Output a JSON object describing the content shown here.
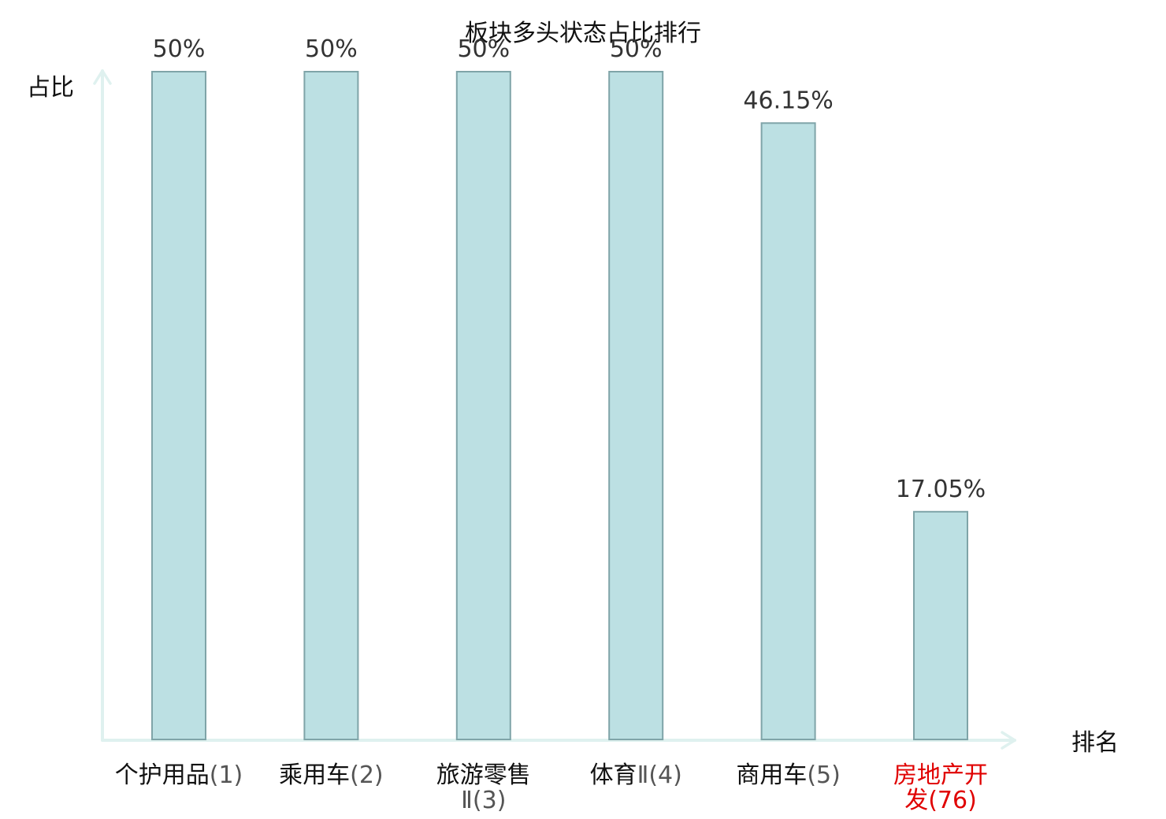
{
  "chart_data": {
    "type": "bar",
    "title": "板块多头状态占比排行",
    "xlabel": "排名",
    "ylabel": "占比",
    "ylim": [
      0,
      50
    ],
    "grid": false,
    "legend": "none",
    "categories": [
      "个护用品(1)",
      "乘用车(2)",
      "旅游零售Ⅱ(3)",
      "体育Ⅱ(4)",
      "商用车(5)",
      "房地产开发(76)"
    ],
    "category_parts": [
      {
        "lines": [
          {
            "name": "个护用品",
            "idx": "(1)"
          }
        ]
      },
      {
        "lines": [
          {
            "name": "乘用车",
            "idx": "(2)"
          }
        ]
      },
      {
        "lines": [
          {
            "name": "旅游零售",
            "idx": ""
          },
          {
            "name": "",
            "idx": "Ⅱ(3)"
          }
        ]
      },
      {
        "lines": [
          {
            "name": "体育",
            "idx": "Ⅱ(4)"
          }
        ]
      },
      {
        "lines": [
          {
            "name": "商用车",
            "idx": "(5)"
          }
        ]
      },
      {
        "lines": [
          {
            "name": "房地产开",
            "idx": ""
          },
          {
            "name": "发",
            "idx": "(76)"
          }
        ]
      }
    ],
    "values": [
      50,
      50,
      50,
      50,
      46.15,
      17.05
    ],
    "value_labels": [
      "50%",
      "50%",
      "50%",
      "50%",
      "46.15%",
      "17.05%"
    ],
    "highlight_index": 5,
    "colors": {
      "bar_fill": "#bce0e3",
      "bar_stroke": "#7fa4a8",
      "axis": "#dff1ef",
      "text": "#111111",
      "index_text": "#555555",
      "value_text": "#333333",
      "highlight": "#e00000"
    }
  }
}
